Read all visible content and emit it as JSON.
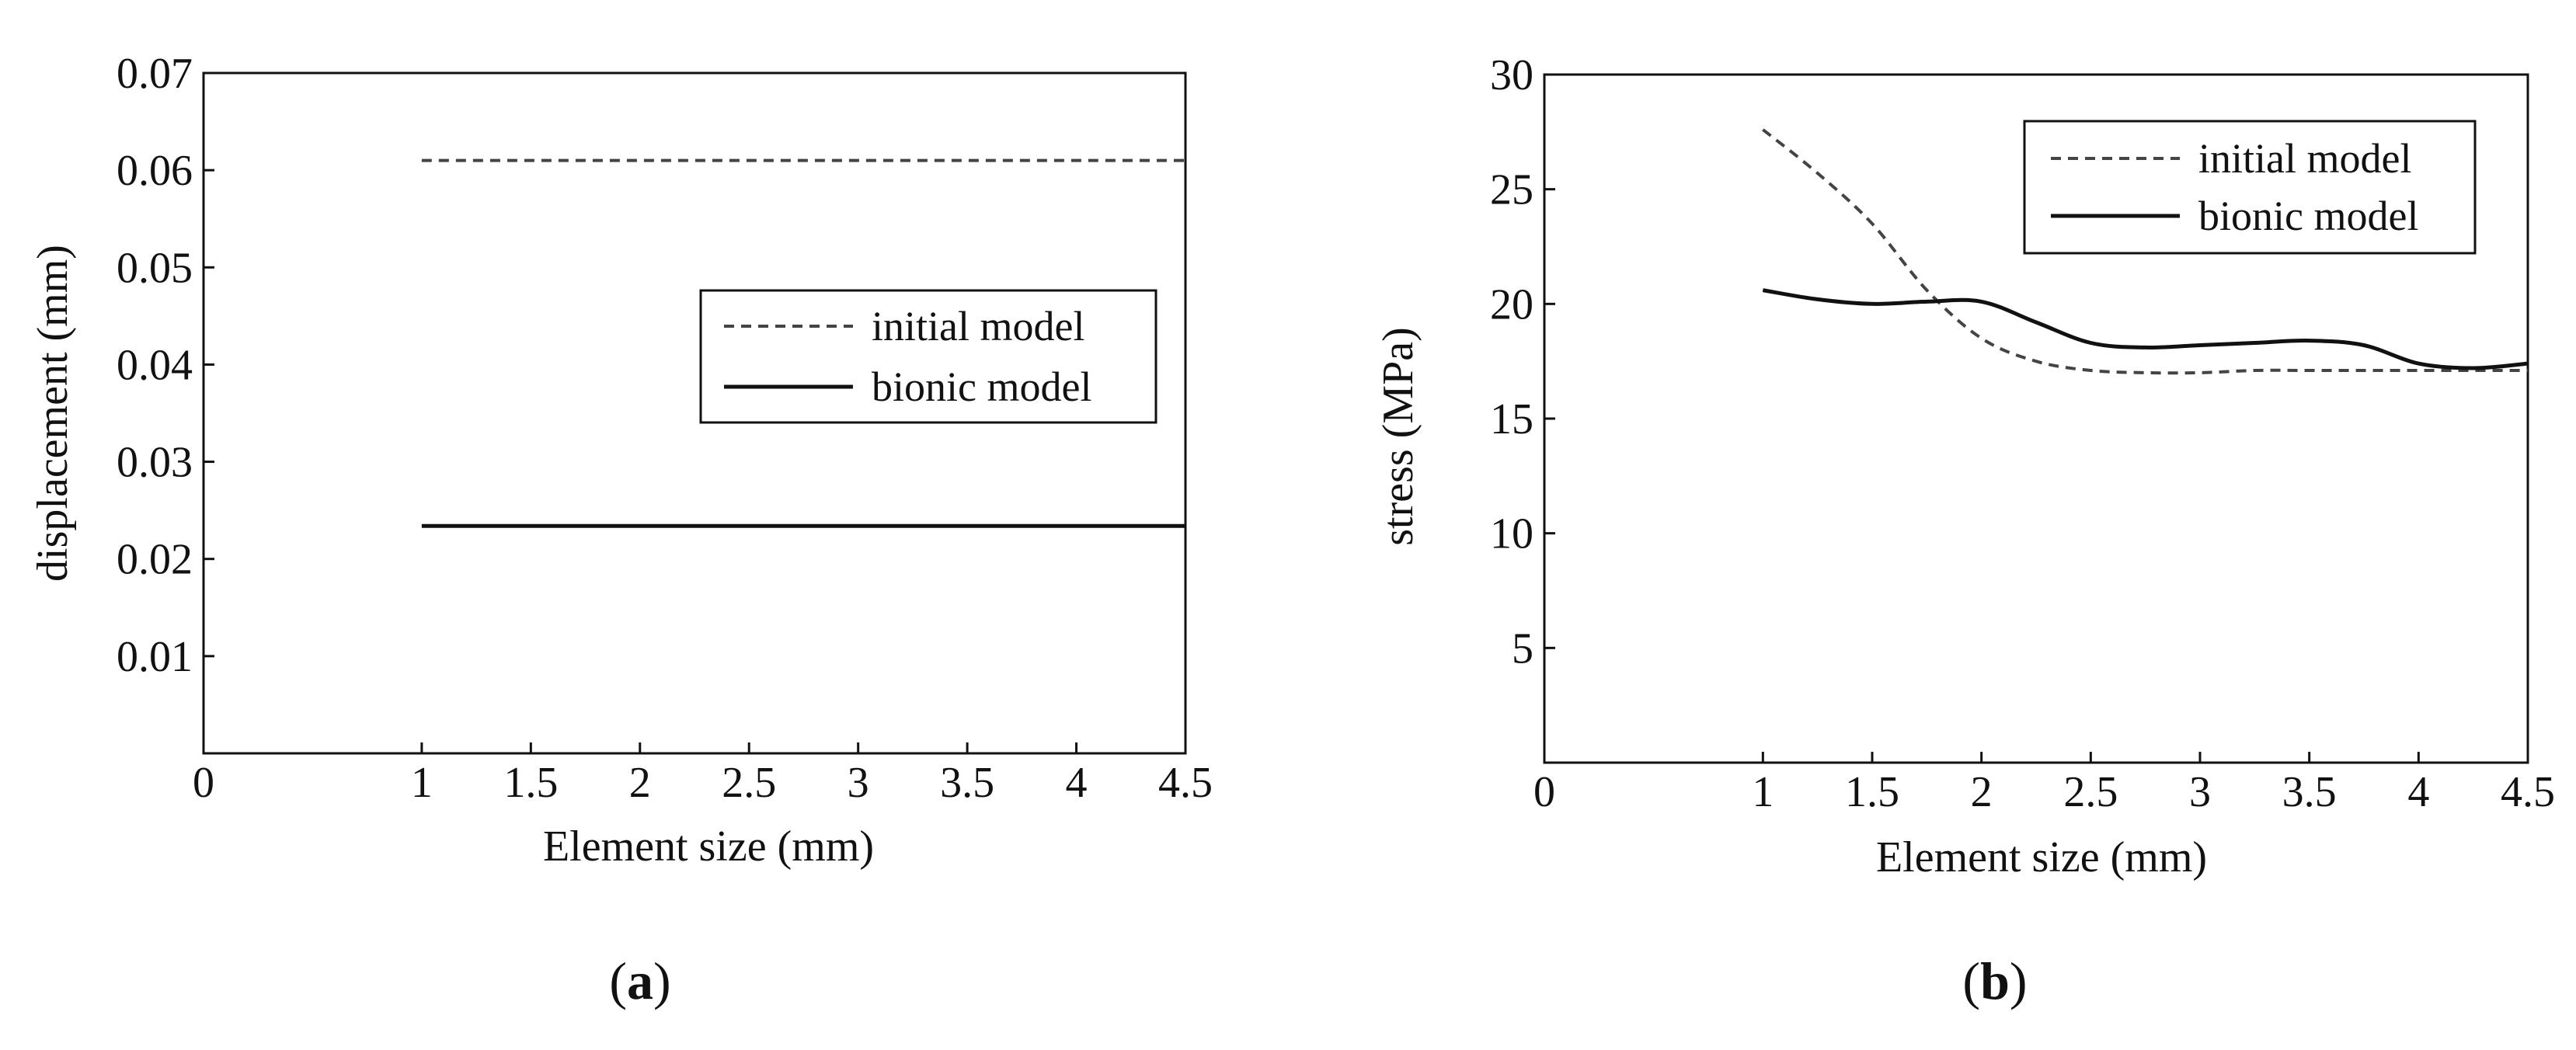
{
  "chart_data": [
    {
      "type": "line",
      "panel": "(a)",
      "panel_letter": "a",
      "xlabel": "Element size (mm)",
      "ylabel": "displacement (mm)",
      "xlim": [
        0,
        4.5
      ],
      "ylim": [
        0,
        0.07
      ],
      "xticks": [
        "0",
        "1",
        "1.5",
        "2",
        "2.5",
        "3",
        "3.5",
        "4",
        "4.5"
      ],
      "yticks": [
        "0.01",
        "0.02",
        "0.03",
        "0.04",
        "0.05",
        "0.06",
        "0.07"
      ],
      "grid": false,
      "legend_position": "center-right",
      "series": [
        {
          "name": "initial model",
          "style": "dashed",
          "color": "#444444",
          "x": [
            1,
            1.5,
            2,
            2.5,
            3,
            3.5,
            4,
            4.5
          ],
          "y": [
            0.061,
            0.061,
            0.061,
            0.061,
            0.061,
            0.061,
            0.061,
            0.061
          ]
        },
        {
          "name": "bionic model",
          "style": "solid",
          "color": "#111111",
          "x": [
            1,
            1.5,
            2,
            2.5,
            3,
            3.5,
            4,
            4.5
          ],
          "y": [
            0.0234,
            0.0234,
            0.0234,
            0.0234,
            0.0234,
            0.0234,
            0.0234,
            0.0234
          ]
        }
      ]
    },
    {
      "type": "line",
      "panel": "(b)",
      "panel_letter": "b",
      "xlabel": "Element size (mm)",
      "ylabel": "stress (MPa)",
      "xlim": [
        0,
        4.5
      ],
      "ylim": [
        0,
        30
      ],
      "xticks": [
        "0",
        "1",
        "1.5",
        "2",
        "2.5",
        "3",
        "3.5",
        "4",
        "4.5"
      ],
      "yticks": [
        "5",
        "10",
        "15",
        "20",
        "25",
        "30"
      ],
      "grid": false,
      "legend_position": "top-right",
      "series": [
        {
          "name": "initial model",
          "style": "dashed",
          "color": "#444444",
          "x": [
            1.0,
            1.25,
            1.5,
            1.75,
            2.0,
            2.25,
            2.5,
            2.75,
            3.0,
            3.25,
            3.5,
            3.75,
            4.0,
            4.25,
            4.5
          ],
          "y": [
            27.6,
            25.7,
            23.5,
            20.6,
            18.5,
            17.5,
            17.1,
            17.0,
            17.0,
            17.1,
            17.1,
            17.1,
            17.1,
            17.1,
            17.1
          ]
        },
        {
          "name": "bionic model",
          "style": "solid",
          "color": "#111111",
          "x": [
            1.0,
            1.25,
            1.5,
            1.75,
            2.0,
            2.25,
            2.5,
            2.75,
            3.0,
            3.25,
            3.5,
            3.75,
            4.0,
            4.25,
            4.5
          ],
          "y": [
            20.6,
            20.2,
            20.0,
            20.1,
            20.1,
            19.2,
            18.3,
            18.1,
            18.2,
            18.3,
            18.4,
            18.2,
            17.4,
            17.2,
            17.4
          ]
        }
      ]
    }
  ]
}
